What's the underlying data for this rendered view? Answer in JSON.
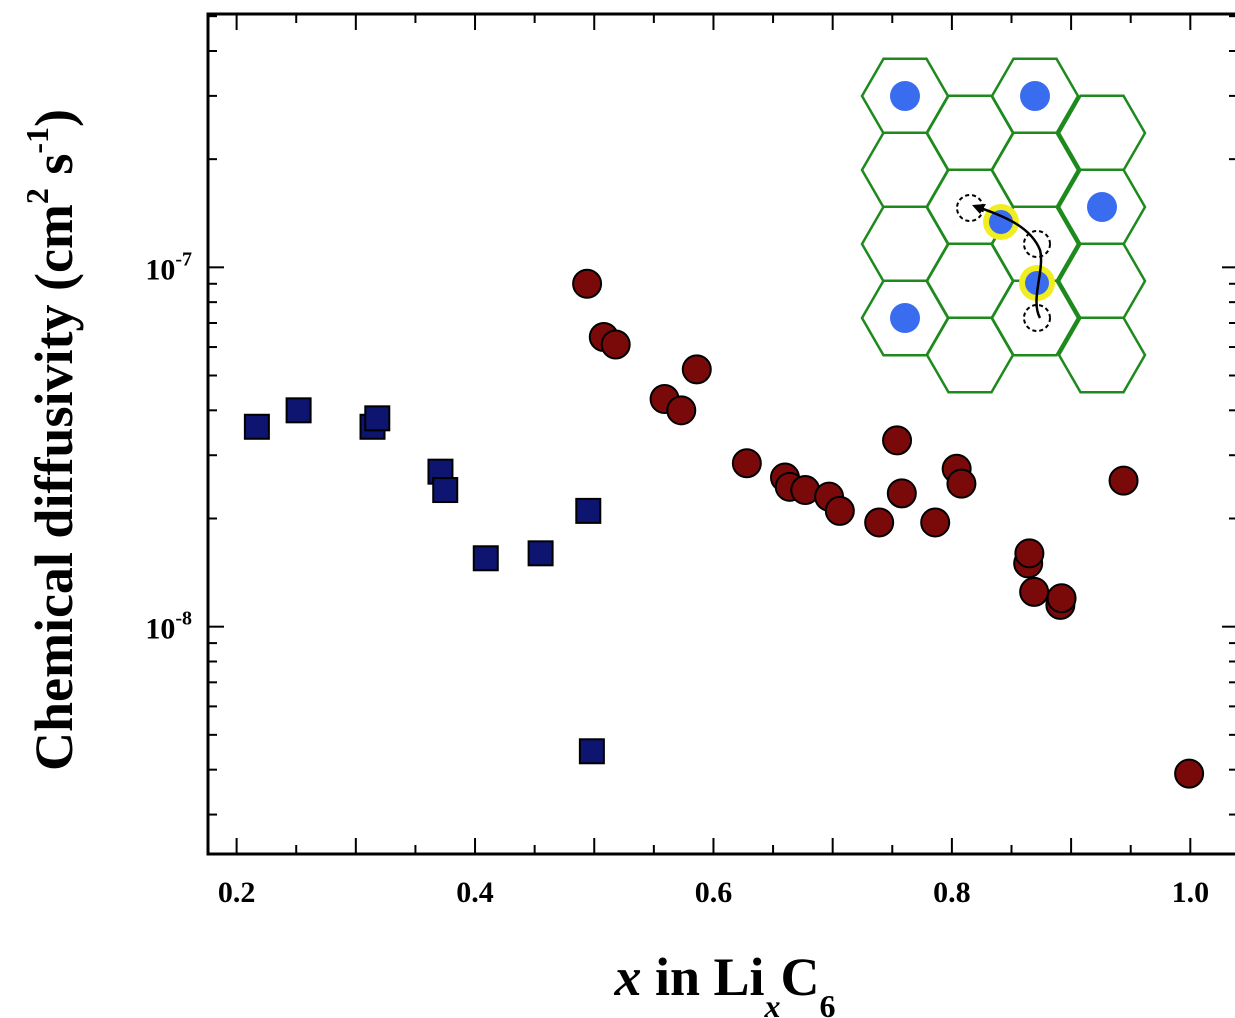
{
  "chart_data": {
    "type": "scatter",
    "xlabel": {
      "var": "x",
      "mid": " in Li",
      "sub": "x",
      "elem": "C",
      "sub2": "6"
    },
    "ylabel": {
      "main": "Chemical diffusivity (cm",
      "sup1": "2",
      "mid": " s",
      "sup2": "-1",
      "end": ")"
    },
    "x_ticks": [
      "0.2",
      "0.4",
      "0.6",
      "0.8",
      "1.0"
    ],
    "x_tick_values": [
      0.2,
      0.4,
      0.6,
      0.8,
      1.0
    ],
    "y_ticks": [
      {
        "base": "10",
        "exp": "-7",
        "value": 1e-07
      },
      {
        "base": "10",
        "exp": "-8",
        "value": 1e-08
      }
    ],
    "xlim": [
      0.176,
      1.04
    ],
    "ylim": [
      2.33e-09,
      5.07e-07
    ],
    "yscale": "log",
    "grid": false,
    "series": [
      {
        "marker": "square",
        "color": "#0d1570",
        "points": [
          [
            0.217,
            3.6e-08
          ],
          [
            0.252,
            4e-08
          ],
          [
            0.314,
            3.6e-08
          ],
          [
            0.318,
            3.8e-08
          ],
          [
            0.371,
            2.7e-08
          ],
          [
            0.375,
            2.4e-08
          ],
          [
            0.409,
            1.55e-08
          ],
          [
            0.455,
            1.6e-08
          ],
          [
            0.495,
            2.1e-08
          ],
          [
            0.498,
            4.5e-09
          ]
        ]
      },
      {
        "marker": "circle",
        "color": "#7a0a0a",
        "points": [
          [
            0.494,
            9e-08
          ],
          [
            0.508,
            6.4e-08
          ],
          [
            0.518,
            6.1e-08
          ],
          [
            0.559,
            4.3e-08
          ],
          [
            0.573,
            4e-08
          ],
          [
            0.586,
            5.2e-08
          ],
          [
            0.628,
            2.85e-08
          ],
          [
            0.66,
            2.6e-08
          ],
          [
            0.664,
            2.45e-08
          ],
          [
            0.677,
            2.4e-08
          ],
          [
            0.697,
            2.3e-08
          ],
          [
            0.706,
            2.1e-08
          ],
          [
            0.739,
            1.95e-08
          ],
          [
            0.754,
            3.3e-08
          ],
          [
            0.758,
            2.35e-08
          ],
          [
            0.786,
            1.95e-08
          ],
          [
            0.804,
            2.75e-08
          ],
          [
            0.808,
            2.5e-08
          ],
          [
            0.864,
            1.5e-08
          ],
          [
            0.865,
            1.6e-08
          ],
          [
            0.869,
            1.25e-08
          ],
          [
            0.891,
            1.15e-08
          ],
          [
            0.892,
            1.2e-08
          ],
          [
            0.944,
            2.55e-08
          ],
          [
            0.999,
            3.9e-09
          ]
        ]
      }
    ]
  },
  "inset": {
    "edge_color": "#1e8a1e",
    "atom_color": "#3a6cf0",
    "highlight_color": "#f0ee20"
  }
}
